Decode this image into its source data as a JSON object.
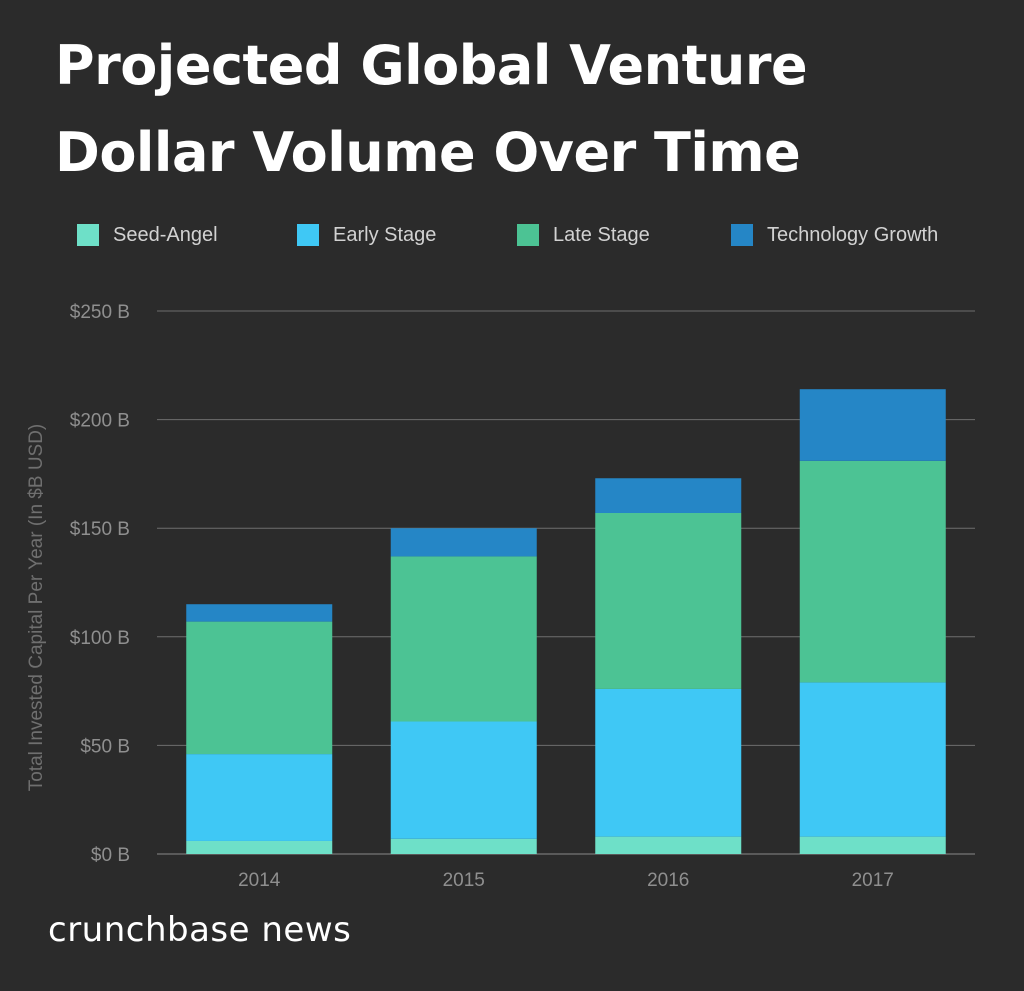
{
  "title": "Projected Global Venture Dollar Volume Over Time",
  "brand": "crunchbase news",
  "legend": [
    {
      "label": "Seed-Angel",
      "color": "#6ee0c8"
    },
    {
      "label": "Early Stage",
      "color": "#3fc8f5"
    },
    {
      "label": "Late Stage",
      "color": "#4cc394"
    },
    {
      "label": "Technology Growth",
      "color": "#2586c6"
    }
  ],
  "chart_data": {
    "type": "bar",
    "stacked": true,
    "categories": [
      "2014",
      "2015",
      "2016",
      "2017"
    ],
    "series": [
      {
        "name": "Seed-Angel",
        "color": "#6ee0c8",
        "values": [
          6,
          7,
          8,
          8
        ]
      },
      {
        "name": "Early Stage",
        "color": "#3fc8f5",
        "values": [
          40,
          54,
          68,
          71
        ]
      },
      {
        "name": "Late Stage",
        "color": "#4cc394",
        "values": [
          61,
          76,
          81,
          102
        ]
      },
      {
        "name": "Technology Growth",
        "color": "#2586c6",
        "values": [
          8,
          13,
          16,
          33
        ]
      }
    ],
    "title": "Projected Global Venture Dollar Volume Over Time",
    "xlabel": "",
    "ylabel": "Total Invested Capital Per Year (In $B USD)",
    "ylim": [
      0,
      250
    ],
    "yticks": [
      0,
      50,
      100,
      150,
      200,
      250
    ],
    "ytick_labels": [
      "$0 B",
      "$50 B",
      "$100 B",
      "$150 B",
      "$200 B",
      "$250 B"
    ],
    "grid": true,
    "legend_position": "top"
  }
}
